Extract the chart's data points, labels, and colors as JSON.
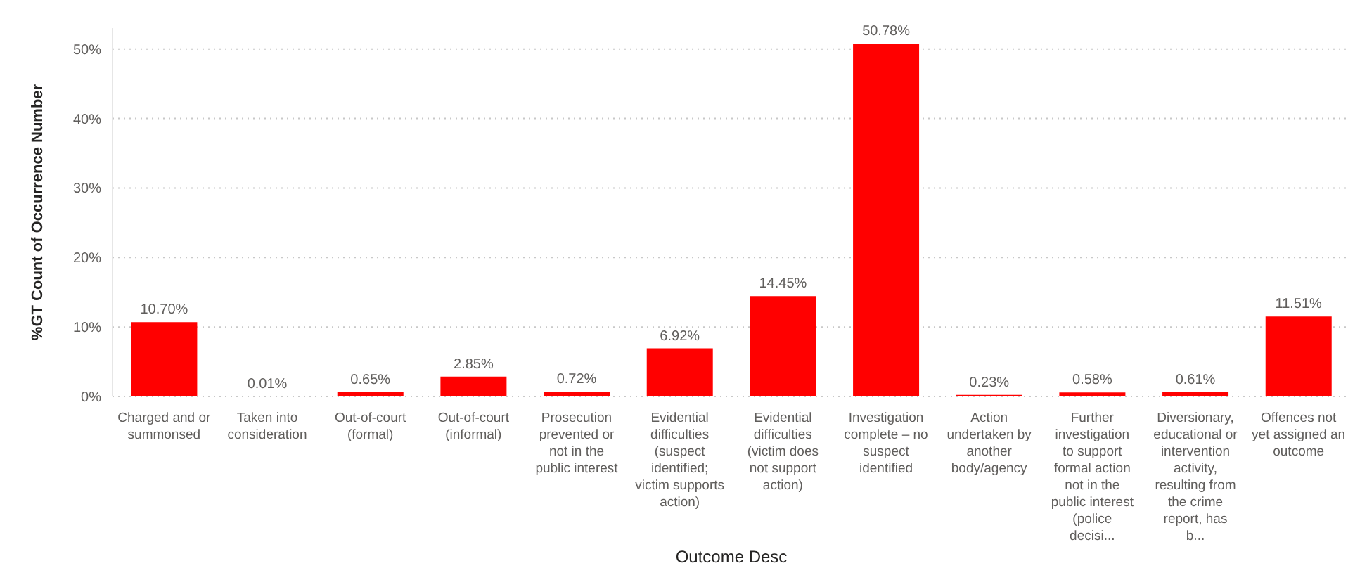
{
  "chart_data": {
    "type": "bar",
    "xlabel": "Outcome Desc",
    "ylabel": "%GT Count of Occurrence Number",
    "categories": [
      "Charged and or summonsed",
      "Taken into consideration",
      "Out-of-court (formal)",
      "Out-of-court (informal)",
      "Prosecution prevented or not in the public interest",
      "Evidential difficulties (suspect identified; victim supports action)",
      "Evidential difficulties (victim does not support action)",
      "Investigation complete – no suspect identified",
      "Action undertaken by another body/agency",
      "Further investigation to support formal action not in the public interest (police decisi...",
      "Diversionary, educational or intervention activity, resulting from the crime report, has b...",
      "Offences not yet assigned an outcome"
    ],
    "values": [
      10.7,
      0.01,
      0.65,
      2.85,
      0.72,
      6.92,
      14.45,
      50.78,
      0.23,
      0.58,
      0.61,
      11.51
    ],
    "value_labels": [
      "10.70%",
      "0.01%",
      "0.65%",
      "2.85%",
      "0.72%",
      "6.92%",
      "14.45%",
      "50.78%",
      "0.23%",
      "0.58%",
      "0.61%",
      "11.51%"
    ],
    "color": "#ff0000",
    "ylim": [
      0,
      53
    ],
    "yticks": [
      {
        "value": 0,
        "label": "0%"
      },
      {
        "value": 10,
        "label": "10%"
      },
      {
        "value": 20,
        "label": "20%"
      },
      {
        "value": 30,
        "label": "30%"
      },
      {
        "value": 40,
        "label": "40%"
      },
      {
        "value": 50,
        "label": "50%"
      }
    ],
    "grid": "y"
  }
}
